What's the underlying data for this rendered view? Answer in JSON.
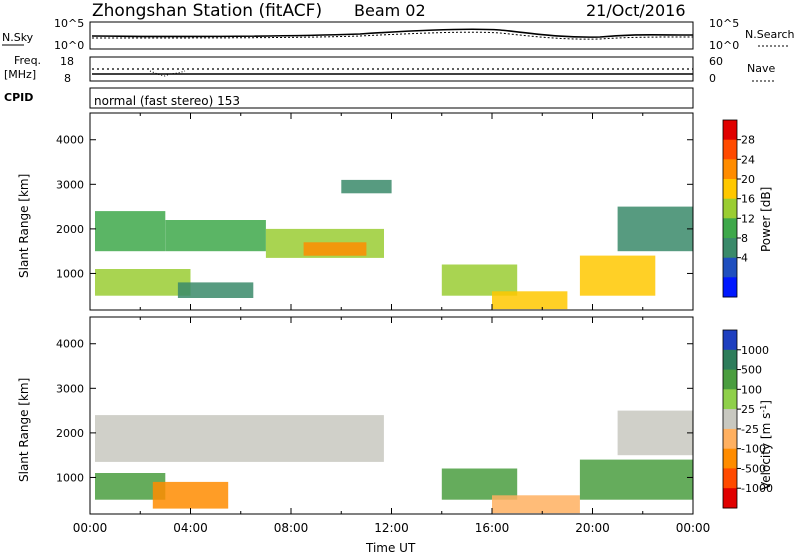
{
  "header": {
    "station": "Zhongshan Station (fitACF)",
    "beam": "Beam 02",
    "date": "21/Oct/2016"
  },
  "noise_panel": {
    "left_label": "N.Sky",
    "left_ticks": [
      "10^5",
      "10^0"
    ],
    "right_label": "N.Search",
    "right_ticks": [
      "10^5",
      "10^0"
    ]
  },
  "freq_panel": {
    "left_label_1": "Freq.",
    "left_label_2": "[MHz]",
    "left_ticks": [
      "18",
      "8"
    ],
    "right_label": "Nave",
    "right_ticks": [
      "60",
      "0"
    ]
  },
  "cpid_panel": {
    "label": "CPID",
    "text": "normal (fast stereo) 153"
  },
  "chart_data": [
    {
      "type": "heatmap",
      "name": "power",
      "ylabel": "Slant Range [km]",
      "yticks": [
        1000,
        2000,
        3000,
        4000
      ],
      "ylim": [
        180,
        4600
      ],
      "xlim": [
        0,
        24
      ],
      "colorbar": {
        "label": "Power [dB]",
        "ticks": [
          "28",
          "24",
          "20",
          "16",
          "12",
          "8",
          "4"
        ],
        "colors": [
          "#e00000",
          "#ff4a00",
          "#ff8c00",
          "#ffc800",
          "#9acd32",
          "#3ea84a",
          "#3a8a6a",
          "#1f4fbf",
          "#0018ff"
        ]
      },
      "echo_regions": [
        {
          "x": [
            0.2,
            3.0
          ],
          "y": [
            1500,
            2400
          ],
          "value": 12
        },
        {
          "x": [
            3.0,
            7.0
          ],
          "y": [
            1500,
            2200
          ],
          "value": 14
        },
        {
          "x": [
            7.0,
            11.7
          ],
          "y": [
            1350,
            2000
          ],
          "value": 18
        },
        {
          "x": [
            8.5,
            11.0
          ],
          "y": [
            1400,
            1700
          ],
          "value": 24
        },
        {
          "x": [
            0.2,
            4.0
          ],
          "y": [
            500,
            1100
          ],
          "value": 18
        },
        {
          "x": [
            3.5,
            6.5
          ],
          "y": [
            450,
            800
          ],
          "value": 10
        },
        {
          "x": [
            10.0,
            12.0
          ],
          "y": [
            2800,
            3100
          ],
          "value": 8
        },
        {
          "x": [
            14.0,
            17.0
          ],
          "y": [
            500,
            1200
          ],
          "value": 16
        },
        {
          "x": [
            16.0,
            19.0
          ],
          "y": [
            200,
            600
          ],
          "value": 20
        },
        {
          "x": [
            19.5,
            22.5
          ],
          "y": [
            500,
            1400
          ],
          "value": 22
        },
        {
          "x": [
            21.0,
            24.0
          ],
          "y": [
            1500,
            2500
          ],
          "value": 8
        }
      ]
    },
    {
      "type": "heatmap",
      "name": "velocity",
      "ylabel": "Slant Range [km]",
      "xlabel": "Time UT",
      "xticks": [
        "00:00",
        "04:00",
        "08:00",
        "12:00",
        "16:00",
        "20:00",
        "00:00"
      ],
      "yticks": [
        1000,
        2000,
        3000,
        4000
      ],
      "ylim": [
        180,
        4600
      ],
      "xlim": [
        0,
        24
      ],
      "colorbar": {
        "label": "Velocity [m s-1]",
        "ticks": [
          "1000",
          "500",
          "100",
          "25",
          "-25",
          "-100",
          "-500",
          "-1000"
        ],
        "colors": [
          "#1e3fbf",
          "#2e7d5b",
          "#4a9d3f",
          "#8fd04a",
          "#c8c8c0",
          "#ffb060",
          "#ff8c00",
          "#ff4a00",
          "#e00000"
        ]
      },
      "echo_regions": [
        {
          "x": [
            0.2,
            11.7
          ],
          "y": [
            1350,
            2400
          ],
          "value": 0
        },
        {
          "x": [
            0.2,
            3.0
          ],
          "y": [
            500,
            1100
          ],
          "value": 150
        },
        {
          "x": [
            2.5,
            5.5
          ],
          "y": [
            300,
            900
          ],
          "value": -300
        },
        {
          "x": [
            14.0,
            17.0
          ],
          "y": [
            500,
            1200
          ],
          "value": 200
        },
        {
          "x": [
            16.0,
            19.5
          ],
          "y": [
            200,
            600
          ],
          "value": -80
        },
        {
          "x": [
            19.5,
            24.0
          ],
          "y": [
            500,
            1400
          ],
          "value": 150
        },
        {
          "x": [
            21.0,
            24.0
          ],
          "y": [
            1500,
            2500
          ],
          "value": 0
        }
      ]
    }
  ]
}
